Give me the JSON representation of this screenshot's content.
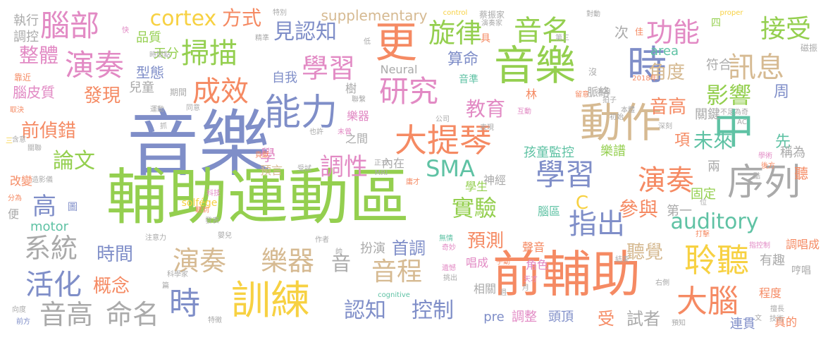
{
  "cloud": {
    "palette": {
      "blue": "#7f8ec8",
      "green": "#94cf4f",
      "orange": "#f58a63",
      "tan": "#d6ba92",
      "gray": "#aaaaaa",
      "teal": "#5fc2a4",
      "pink": "#e28ac4",
      "yellow": "#f7d142"
    },
    "words": [
      {
        "text": "音樂",
        "color": "#7f8ec8"
      },
      {
        "text": "輔助運動區",
        "color": "#94cf4f"
      },
      {
        "text": "前輔助",
        "color": "#f58a63"
      },
      {
        "text": "音樂",
        "color": "#94cf4f"
      },
      {
        "text": "序列",
        "color": "#aaaaaa"
      },
      {
        "text": "中",
        "color": "#5fc2a4"
      },
      {
        "text": "動作",
        "color": "#d6ba92"
      },
      {
        "text": "時",
        "color": "#7f8ec8"
      },
      {
        "text": "更",
        "color": "#f58a63"
      },
      {
        "text": "訓練",
        "color": "#f7d142"
      },
      {
        "text": "能力",
        "color": "#7f8ec8"
      },
      {
        "text": "大提琴",
        "color": "#f58a63"
      },
      {
        "text": "聆聽",
        "color": "#f7d142"
      },
      {
        "text": "大腦",
        "color": "#f58a63"
      },
      {
        "text": "腦部",
        "color": "#e28ac4"
      },
      {
        "text": "演奏",
        "color": "#e28ac4"
      },
      {
        "text": "掃描",
        "color": "#94cf4f"
      },
      {
        "text": "成效",
        "color": "#f58a63"
      },
      {
        "text": "研究",
        "color": "#e28ac4"
      },
      {
        "text": "旋律",
        "color": "#94cf4f"
      },
      {
        "text": "音名",
        "color": "#94cf4f"
      },
      {
        "text": "功能",
        "color": "#e28ac4"
      },
      {
        "text": "接受",
        "color": "#94cf4f"
      },
      {
        "text": "訊息",
        "color": "#d6ba92"
      },
      {
        "text": "學習",
        "color": "#e28ac4"
      },
      {
        "text": "學習",
        "color": "#7f8ec8"
      },
      {
        "text": "演奏",
        "color": "#f58a63"
      },
      {
        "text": "演奏",
        "color": "#d6ba92"
      },
      {
        "text": "樂器",
        "color": "#d6ba92"
      },
      {
        "text": "指出",
        "color": "#7f8ec8"
      },
      {
        "text": "音程",
        "color": "#d6ba92"
      },
      {
        "text": "時",
        "color": "#7f8ec8"
      },
      {
        "text": "活化",
        "color": "#7f8ec8"
      },
      {
        "text": "系統",
        "color": "#aaaaaa"
      },
      {
        "text": "音高",
        "color": "#aaaaaa"
      },
      {
        "text": "命名",
        "color": "#aaaaaa"
      },
      {
        "text": "認知",
        "color": "#7f8ec8"
      },
      {
        "text": "控制",
        "color": "#7f8ec8"
      },
      {
        "text": "cortex",
        "color": "#f7d142"
      },
      {
        "text": "方式",
        "color": "#f58a63"
      },
      {
        "text": "見認知",
        "color": "#7f8ec8"
      },
      {
        "text": "整體",
        "color": "#e28ac4"
      },
      {
        "text": "實驗",
        "color": "#94cf4f"
      },
      {
        "text": "SMA",
        "color": "#5fc2a4"
      },
      {
        "text": "調性",
        "color": "#e28ac4"
      },
      {
        "text": "auditory",
        "color": "#5fc2a4"
      },
      {
        "text": "影響",
        "color": "#94cf4f"
      },
      {
        "text": "未來",
        "color": "#5fc2a4"
      },
      {
        "text": "論文",
        "color": "#94cf4f"
      },
      {
        "text": "發現",
        "color": "#f58a63"
      },
      {
        "text": "前偵錯",
        "color": "#f58a63"
      },
      {
        "text": "高",
        "color": "#7f8ec8"
      },
      {
        "text": "時間",
        "color": "#7f8ec8"
      },
      {
        "text": "概念",
        "color": "#f58a63"
      },
      {
        "text": "教育",
        "color": "#e28ac4"
      },
      {
        "text": "音高",
        "color": "#f58a63"
      },
      {
        "text": "角度",
        "color": "#d6ba92"
      },
      {
        "text": "參與",
        "color": "#f58a63"
      },
      {
        "text": "聽覺",
        "color": "#d6ba92"
      },
      {
        "text": "預測",
        "color": "#f58a63"
      },
      {
        "text": "首調",
        "color": "#7f8ec8"
      },
      {
        "text": "音",
        "color": "#aaaaaa"
      },
      {
        "text": "受",
        "color": "#f58a63"
      },
      {
        "text": "試者",
        "color": "#aaaaaa"
      },
      {
        "text": "算命",
        "color": "#7f8ec8"
      },
      {
        "text": "supplementary",
        "color": "#d6ba92"
      },
      {
        "text": "Neural",
        "color": "#aaaaaa"
      },
      {
        "text": "pre",
        "color": "#7f8ec8"
      },
      {
        "text": "調整",
        "color": "#e28ac4"
      },
      {
        "text": "頭頂",
        "color": "#7f8ec8"
      },
      {
        "text": "執行",
        "color": "#aaaaaa"
      },
      {
        "text": "調控",
        "color": "#aaaaaa"
      },
      {
        "text": "品質",
        "color": "#94cf4f"
      },
      {
        "text": "天分",
        "color": "#94cf4f"
      },
      {
        "text": "型態",
        "color": "#7f8ec8"
      },
      {
        "text": "兒童",
        "color": "#aaaaaa"
      },
      {
        "text": "自我",
        "color": "#7f8ec8"
      },
      {
        "text": "area",
        "color": "#5fc2a4"
      },
      {
        "text": "符合",
        "color": "#aaaaaa"
      },
      {
        "text": "周",
        "color": "#7f8ec8"
      },
      {
        "text": "先",
        "color": "#5fc2a4"
      },
      {
        "text": "稱為",
        "color": "#aaaaaa"
      },
      {
        "text": "關鍵",
        "color": "#aaaaaa"
      },
      {
        "text": "孩童監控",
        "color": "#5fc2a4"
      },
      {
        "text": "樂譜",
        "color": "#94cf4f"
      },
      {
        "text": "神經",
        "color": "#aaaaaa"
      },
      {
        "text": "學生",
        "color": "#94cf4f"
      },
      {
        "text": "腦區",
        "color": "#5fc2a4"
      },
      {
        "text": "第一",
        "color": "#aaaaaa"
      },
      {
        "text": "固定",
        "color": "#94cf4f"
      },
      {
        "text": "motor",
        "color": "#5fc2a4"
      },
      {
        "text": "solfége",
        "color": "#f7d142"
      },
      {
        "text": "聲音",
        "color": "#f58a63"
      },
      {
        "text": "角色",
        "color": "#e28ac4"
      },
      {
        "text": "唱成",
        "color": "#e28ac4"
      },
      {
        "text": "有趣",
        "color": "#aaaaaa"
      },
      {
        "text": "調唱成",
        "color": "#f58a63"
      },
      {
        "text": "程度",
        "color": "#f58a63"
      },
      {
        "text": "真的",
        "color": "#f58a63"
      },
      {
        "text": "連貫",
        "color": "#7f8ec8"
      },
      {
        "text": "扮演",
        "color": "#aaaaaa"
      },
      {
        "text": "相關",
        "color": "#aaaaaa"
      },
      {
        "text": "之間",
        "color": "#aaaaaa"
      },
      {
        "text": "內在",
        "color": "#aaaaaa"
      },
      {
        "text": "預言",
        "color": "#d6ba92"
      },
      {
        "text": "改變",
        "color": "#f58a63"
      },
      {
        "text": "便",
        "color": "#aaaaaa"
      },
      {
        "text": "脈絡",
        "color": "#aaaaaa"
      },
      {
        "text": "樹",
        "color": "#aaaaaa"
      },
      {
        "text": "林",
        "color": "#f58a63"
      },
      {
        "text": "次",
        "color": "#aaaaaa"
      },
      {
        "text": "項",
        "color": "#f58a63"
      },
      {
        "text": "兩",
        "color": "#aaaaaa"
      },
      {
        "text": "聽",
        "color": "#f58a63"
      },
      {
        "text": "學",
        "color": "#e28ac4"
      },
      {
        "text": "圖",
        "color": "#7f8ec8"
      },
      {
        "text": "C",
        "color": "#f7d142"
      },
      {
        "text": "樂器",
        "color": "#e28ac4"
      },
      {
        "text": "音準",
        "color": "#5fc2a4"
      },
      {
        "text": "哼唱",
        "color": "#aaaaaa"
      },
      {
        "text": "磁振",
        "color": "#aaaaaa"
      },
      {
        "text": "四",
        "color": "#94cf4f"
      },
      {
        "text": "腦皮質",
        "color": "#e28ac4"
      },
      {
        "text": "靠近",
        "color": "#f58a63"
      },
      {
        "text": "期間",
        "color": "#aaaaaa"
      },
      {
        "text": "運動",
        "color": "#aaaaaa"
      },
      {
        "text": "時間點",
        "color": "#aaaaaa"
      },
      {
        "text": "精準",
        "color": "#aaaaaa"
      },
      {
        "text": "低",
        "color": "#aaaaaa"
      },
      {
        "text": "蔡振家",
        "color": "#aaaaaa"
      },
      {
        "text": "演奏家",
        "color": "#aaaaaa"
      },
      {
        "text": "特別",
        "color": "#aaaaaa"
      },
      {
        "text": "control",
        "color": "#f7d142"
      },
      {
        "text": "對動",
        "color": "#aaaaaa"
      },
      {
        "text": "proper",
        "color": "#f7d142"
      },
      {
        "text": "佳",
        "color": "#f58a63"
      },
      {
        "text": "第三",
        "color": "#aaaaaa"
      },
      {
        "text": "沒",
        "color": "#aaaaaa"
      },
      {
        "text": "2018年",
        "color": "#f58a63"
      },
      {
        "text": "留意",
        "color": "#f58a63"
      },
      {
        "text": "源自",
        "color": "#aaaaaa"
      },
      {
        "text": "拍子",
        "color": "#aaaaaa"
      },
      {
        "text": "本體",
        "color": "#aaaaaa"
      },
      {
        "text": "不足為奇",
        "color": "#aaaaaa"
      },
      {
        "text": "AC",
        "color": "#aaaaaa"
      },
      {
        "text": "互動",
        "color": "#e28ac4"
      },
      {
        "text": "初始",
        "color": "#aaaaaa"
      },
      {
        "text": "深刻",
        "color": "#aaaaaa"
      },
      {
        "text": "表現",
        "color": "#aaaaaa"
      },
      {
        "text": "公司",
        "color": "#aaaaaa"
      },
      {
        "text": "未曾",
        "color": "#e28ac4"
      },
      {
        "text": "也許",
        "color": "#aaaaaa"
      },
      {
        "text": "抓",
        "color": "#aaaaaa"
      },
      {
        "text": "同意",
        "color": "#aaaaaa"
      },
      {
        "text": "取決",
        "color": "#f58a63"
      },
      {
        "text": "聯繫",
        "color": "#aaaaaa"
      },
      {
        "text": "含意",
        "color": "#aaaaaa"
      },
      {
        "text": "關聯",
        "color": "#aaaaaa"
      },
      {
        "text": "三",
        "color": "#f7d142"
      },
      {
        "text": "貢獻",
        "color": "#f58a63"
      },
      {
        "text": "受試",
        "color": "#aaaaaa"
      },
      {
        "text": "正式",
        "color": "#aaaaaa"
      },
      {
        "text": "MRI",
        "color": "#aaaaaa"
      },
      {
        "text": "庸才",
        "color": "#f58a63"
      },
      {
        "text": "造影儀",
        "color": "#aaaaaa"
      },
      {
        "text": "科技",
        "color": "#e28ac4"
      },
      {
        "text": "分為",
        "color": "#f58a63"
      },
      {
        "text": "聽到",
        "color": "#f58a63"
      },
      {
        "text": "發表",
        "color": "#aaaaaa"
      },
      {
        "text": "注意力",
        "color": "#aaaaaa"
      },
      {
        "text": "嬰兒",
        "color": "#aaaaaa"
      },
      {
        "text": "作者",
        "color": "#aaaaaa"
      },
      {
        "text": "無情",
        "color": "#5fc2a4"
      },
      {
        "text": "奇妙",
        "color": "#e28ac4"
      },
      {
        "text": "帥",
        "color": "#aaaaaa"
      },
      {
        "text": "遺憾",
        "color": "#e28ac4"
      },
      {
        "text": "挑出",
        "color": "#aaaaaa"
      },
      {
        "text": "cognitive",
        "color": "#5fc2a4"
      },
      {
        "text": "週",
        "color": "#aaaaaa"
      },
      {
        "text": "手動",
        "color": "#f58a63"
      },
      {
        "text": "天才",
        "color": "#e28ac4"
      },
      {
        "text": "月",
        "color": "#aaaaaa"
      },
      {
        "text": "結束",
        "color": "#aaaaaa"
      },
      {
        "text": "右側",
        "color": "#aaaaaa"
      },
      {
        "text": "擅長",
        "color": "#aaaaaa"
      },
      {
        "text": "技術",
        "color": "#aaaaaa"
      },
      {
        "text": "預知",
        "color": "#aaaaaa"
      },
      {
        "text": "文",
        "color": "#aaaaaa"
      },
      {
        "text": "向度",
        "color": "#aaaaaa"
      },
      {
        "text": "前方",
        "color": "#7f8ec8"
      },
      {
        "text": "科學家",
        "color": "#aaaaaa"
      },
      {
        "text": "篇",
        "color": "#aaaaaa"
      },
      {
        "text": "特徵",
        "color": "#aaaaaa"
      },
      {
        "text": "打擊",
        "color": "#f58a63"
      },
      {
        "text": "指控制",
        "color": "#e28ac4"
      },
      {
        "text": "位",
        "color": "#aaaaaa"
      },
      {
        "text": "學術",
        "color": "#e28ac4"
      },
      {
        "text": "後方",
        "color": "#f58a63"
      },
      {
        "text": "酷",
        "color": "#aaaaaa"
      },
      {
        "text": "快",
        "color": "#e28ac4"
      },
      {
        "text": "具",
        "color": "#f58a63"
      }
    ]
  }
}
